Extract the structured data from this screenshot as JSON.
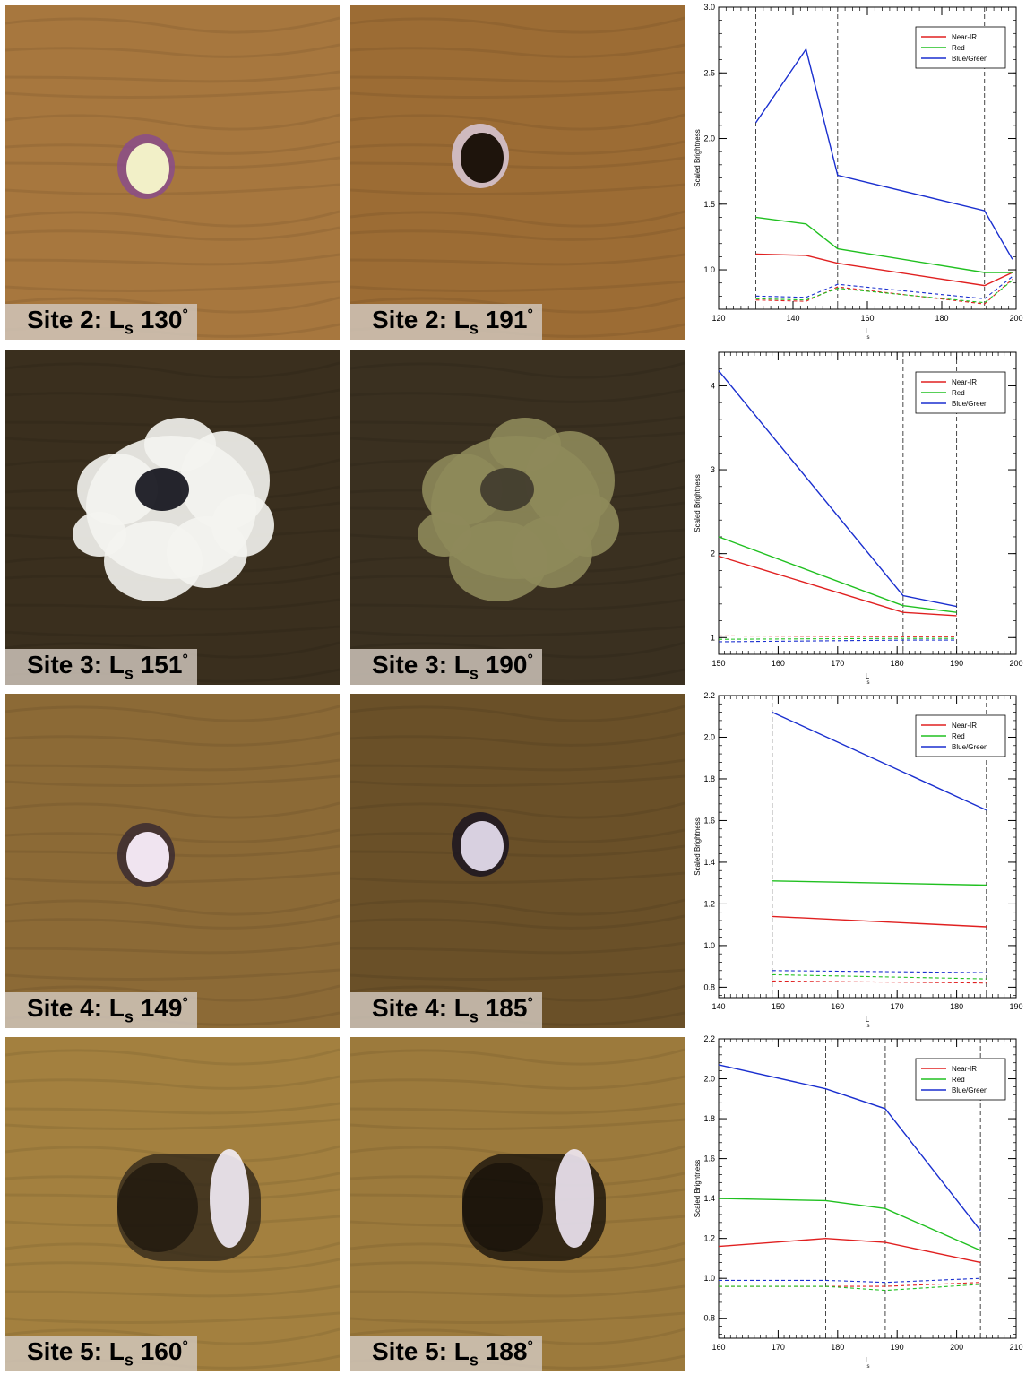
{
  "panels": [
    {
      "image_left": {
        "site": "Site 2",
        "ls_sub": "s",
        "ls_value": "130",
        "deg": "°",
        "colors": {
          "bg": "#a7773e",
          "spot": "#f2f0c8",
          "rim": "#8a4c8a"
        }
      },
      "image_right": {
        "site": "Site 2",
        "ls_sub": "s",
        "ls_value": "191",
        "deg": "°",
        "colors": {
          "bg": "#9c6c34",
          "spot": "#1e140c",
          "rim": "#d8c8d8"
        }
      },
      "chart_data": {
        "type": "line",
        "xlabel": "L",
        "xlabel_sub": "s",
        "ylabel": "Scaled Brightness",
        "xlim": [
          120,
          200
        ],
        "ylim": [
          0.7,
          3.0
        ],
        "xticks": [
          120,
          140,
          160,
          180,
          200
        ],
        "yticks": [
          1.0,
          1.5,
          2.0,
          2.5,
          3.0
        ],
        "ytick_labels": [
          "1.0",
          "1.5",
          "2.0",
          "2.5",
          "3.0"
        ],
        "vlines": [
          130,
          143.5,
          152,
          191.5
        ],
        "legend_position": "top-right",
        "x": [
          130,
          143.5,
          152,
          191.5,
          199
        ],
        "series": [
          {
            "name": "Near-IR",
            "color": "#e02020",
            "values": [
              1.12,
              1.11,
              1.05,
              0.88,
              0.98
            ]
          },
          {
            "name": "Red",
            "color": "#20c020",
            "values": [
              1.4,
              1.35,
              1.16,
              0.98,
              0.98
            ]
          },
          {
            "name": "Blue/Green",
            "color": "#1a2fcf",
            "values": [
              2.12,
              2.68,
              1.72,
              1.45,
              1.08
            ]
          }
        ],
        "reference_series": [
          {
            "color": "#e02020",
            "values": [
              0.77,
              0.76,
              0.87,
              0.74,
              0.93
            ]
          },
          {
            "color": "#20c020",
            "values": [
              0.78,
              0.77,
              0.86,
              0.75,
              0.92
            ]
          },
          {
            "color": "#1a2fcf",
            "values": [
              0.8,
              0.79,
              0.89,
              0.78,
              0.95
            ]
          }
        ]
      }
    },
    {
      "image_left": {
        "site": "Site 3",
        "ls_sub": "s",
        "ls_value": "151",
        "deg": "°",
        "colors": {
          "bg": "#3a2f1e",
          "spot": "#f4f4f0",
          "rim": "#101018"
        }
      },
      "image_right": {
        "site": "Site 3",
        "ls_sub": "s",
        "ls_value": "190",
        "deg": "°",
        "colors": {
          "bg": "#3a3020",
          "spot": "#8e8a5a",
          "rim": "#3f3a2c"
        }
      },
      "chart_data": {
        "type": "line",
        "xlabel": "L",
        "xlabel_sub": "s",
        "ylabel": "Scaled Brightness",
        "xlim": [
          150,
          200
        ],
        "ylim": [
          0.8,
          4.4
        ],
        "xticks": [
          150,
          160,
          170,
          180,
          190,
          200
        ],
        "yticks": [
          1,
          2,
          3,
          4
        ],
        "ytick_labels": [
          "1",
          "2",
          "3",
          "4"
        ],
        "vlines": [
          181,
          190
        ],
        "legend_position": "top-right",
        "x": [
          150,
          181,
          190
        ],
        "series": [
          {
            "name": "Near-IR",
            "color": "#e02020",
            "values": [
              1.97,
              1.3,
              1.26
            ]
          },
          {
            "name": "Red",
            "color": "#20c020",
            "values": [
              2.2,
              1.38,
              1.3
            ]
          },
          {
            "name": "Blue/Green",
            "color": "#1a2fcf",
            "values": [
              4.18,
              1.5,
              1.37
            ]
          }
        ],
        "reference_series": [
          {
            "color": "#e02020",
            "values": [
              1.02,
              1.01,
              1.01
            ]
          },
          {
            "color": "#20c020",
            "values": [
              0.98,
              0.99,
              0.99
            ]
          },
          {
            "color": "#1a2fcf",
            "values": [
              0.95,
              0.97,
              0.97
            ]
          }
        ]
      }
    },
    {
      "image_left": {
        "site": "Site 4",
        "ls_sub": "s",
        "ls_value": "149",
        "deg": "°",
        "colors": {
          "bg": "#8c6a36",
          "spot": "#f0e4f0",
          "rim": "#3a2a30"
        }
      },
      "image_right": {
        "site": "Site 4",
        "ls_sub": "s",
        "ls_value": "185",
        "deg": "°",
        "colors": {
          "bg": "#6a5028",
          "spot": "#d8d0e0",
          "rim": "#1a1420"
        }
      },
      "chart_data": {
        "type": "line",
        "xlabel": "L",
        "xlabel_sub": "s",
        "ylabel": "Scaled Brightness",
        "xlim": [
          140,
          190
        ],
        "ylim": [
          0.75,
          2.2
        ],
        "xticks": [
          140,
          150,
          160,
          170,
          180,
          190
        ],
        "yticks": [
          0.8,
          1.0,
          1.2,
          1.4,
          1.6,
          1.8,
          2.0,
          2.2
        ],
        "ytick_labels": [
          "0.8",
          "1.0",
          "1.2",
          "1.4",
          "1.6",
          "1.8",
          "2.0",
          "2.2"
        ],
        "vlines": [
          149,
          185
        ],
        "legend_position": "top-right",
        "x": [
          149,
          185
        ],
        "series": [
          {
            "name": "Near-IR",
            "color": "#e02020",
            "values": [
              1.14,
              1.09
            ]
          },
          {
            "name": "Red",
            "color": "#20c020",
            "values": [
              1.31,
              1.29
            ]
          },
          {
            "name": "Blue/Green",
            "color": "#1a2fcf",
            "values": [
              2.12,
              1.65
            ]
          }
        ],
        "reference_series": [
          {
            "color": "#e02020",
            "values": [
              0.83,
              0.82
            ]
          },
          {
            "color": "#20c020",
            "values": [
              0.86,
              0.84
            ]
          },
          {
            "color": "#1a2fcf",
            "values": [
              0.88,
              0.87
            ]
          }
        ]
      }
    },
    {
      "image_left": {
        "site": "Site 5",
        "ls_sub": "s",
        "ls_value": "160",
        "deg": "°",
        "colors": {
          "bg": "#a3803f",
          "spot": "#f4eef8",
          "rim": "#2a2218"
        }
      },
      "image_right": {
        "site": "Site 5",
        "ls_sub": "s",
        "ls_value": "188",
        "deg": "°",
        "colors": {
          "bg": "#9c7a3c",
          "spot": "#f0e8f4",
          "rim": "#100c08"
        }
      },
      "chart_data": {
        "type": "line",
        "xlabel": "L",
        "xlabel_sub": "s",
        "ylabel": "Scaled Brightness",
        "xlim": [
          160,
          210
        ],
        "ylim": [
          0.7,
          2.2
        ],
        "xticks": [
          160,
          170,
          180,
          190,
          200,
          210
        ],
        "yticks": [
          0.8,
          1.0,
          1.2,
          1.4,
          1.6,
          1.8,
          2.0,
          2.2
        ],
        "ytick_labels": [
          "0.8",
          "1.0",
          "1.2",
          "1.4",
          "1.6",
          "1.8",
          "2.0",
          "2.2"
        ],
        "vlines": [
          178,
          188,
          204
        ],
        "legend_position": "top-right",
        "x": [
          160,
          178,
          188,
          204
        ],
        "series": [
          {
            "name": "Near-IR",
            "color": "#e02020",
            "values": [
              1.16,
              1.2,
              1.18,
              1.08
            ]
          },
          {
            "name": "Red",
            "color": "#20c020",
            "values": [
              1.4,
              1.39,
              1.35,
              1.14
            ]
          },
          {
            "name": "Blue/Green",
            "color": "#1a2fcf",
            "values": [
              2.07,
              1.95,
              1.85,
              1.24
            ]
          }
        ],
        "reference_series": [
          {
            "color": "#e02020",
            "values": [
              0.96,
              0.96,
              0.96,
              0.98
            ]
          },
          {
            "color": "#20c020",
            "values": [
              0.96,
              0.96,
              0.94,
              0.97
            ]
          },
          {
            "color": "#1a2fcf",
            "values": [
              0.99,
              0.99,
              0.98,
              1.0
            ]
          }
        ]
      }
    }
  ]
}
